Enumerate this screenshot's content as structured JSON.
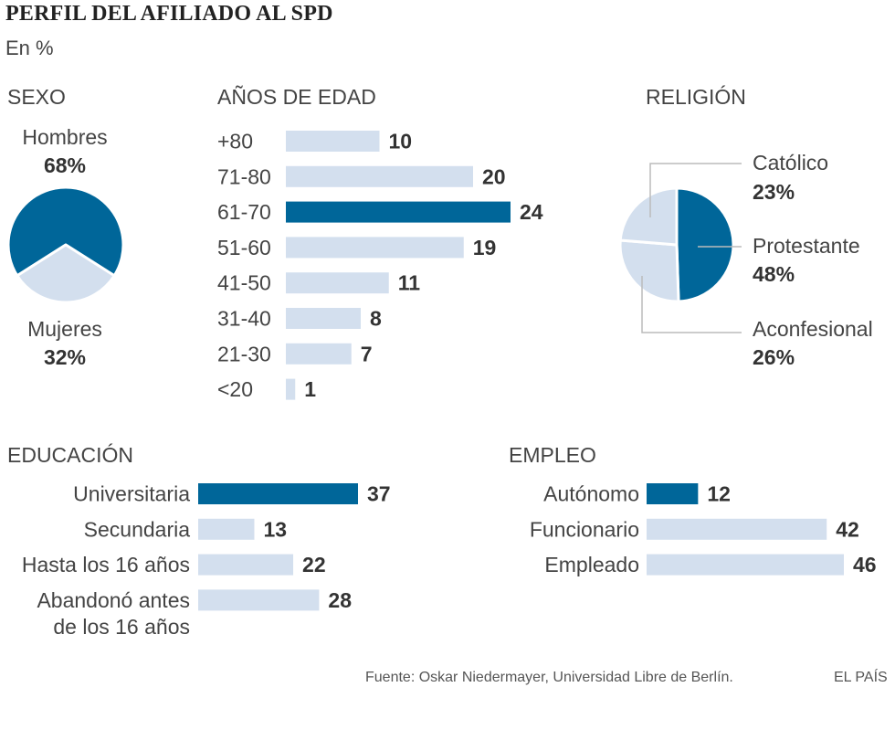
{
  "header": {
    "title": "PERFIL DEL AFILIADO AL SPD",
    "subtitle": "En %"
  },
  "colors": {
    "highlight": "#006699",
    "normal": "#d3dfee",
    "leader": "#bbbbbb",
    "text": "#444444"
  },
  "chart_data": [
    {
      "type": "pie",
      "title": "SEXO",
      "slices": [
        {
          "label": "Hombres",
          "value": 68,
          "value_label": "68%",
          "highlight": true
        },
        {
          "label": "Mujeres",
          "value": 32,
          "value_label": "32%",
          "highlight": false
        }
      ]
    },
    {
      "type": "bar",
      "orientation": "horizontal",
      "title": "AÑOS DE EDAD",
      "categories": [
        "+80",
        "71-80",
        "61-70",
        "51-60",
        "41-50",
        "31-40",
        "21-30",
        "<20"
      ],
      "values": [
        10,
        20,
        24,
        19,
        11,
        8,
        7,
        1
      ],
      "highlight_index": 2
    },
    {
      "type": "pie",
      "title": "RELIGIÓN",
      "slices": [
        {
          "label": "Católico",
          "value": 23,
          "value_label": "23%",
          "highlight": false
        },
        {
          "label": "Protestante",
          "value": 48,
          "value_label": "48%",
          "highlight": true
        },
        {
          "label": "Aconfesional",
          "value": 26,
          "value_label": "26%",
          "highlight": false
        }
      ]
    },
    {
      "type": "bar",
      "orientation": "horizontal",
      "title": "EDUCACIÓN",
      "categories": [
        "Universitaria",
        "Secundaria",
        "Hasta los 16 años",
        "Abandonó antes de los 16 años"
      ],
      "category_lines": [
        [
          "Universitaria"
        ],
        [
          "Secundaria"
        ],
        [
          "Hasta los 16 años"
        ],
        [
          "Abandonó antes",
          "de los 16 años"
        ]
      ],
      "values": [
        37,
        13,
        22,
        28
      ],
      "highlight_index": 0
    },
    {
      "type": "bar",
      "orientation": "horizontal",
      "title": "EMPLEO",
      "categories": [
        "Autónomo",
        "Funcionario",
        "Empleado"
      ],
      "values": [
        12,
        42,
        46
      ],
      "highlight_index": 0
    }
  ],
  "footer": {
    "source": "Fuente: Oskar Niedermayer, Universidad Libre de Berlín.",
    "brand": "EL PAÍS"
  }
}
